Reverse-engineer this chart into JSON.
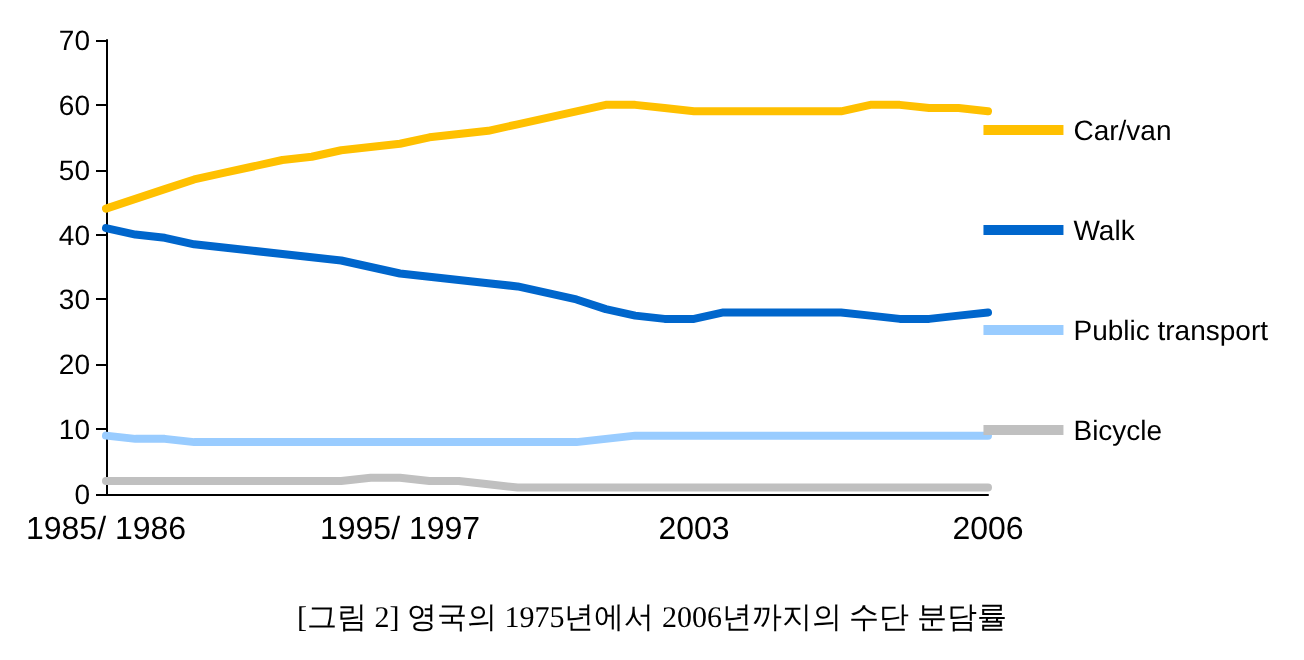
{
  "chart_data": {
    "type": "line",
    "categories": [
      "1985/ 1986",
      null,
      null,
      null,
      null,
      null,
      null,
      null,
      null,
      null,
      "1995/ 1997",
      null,
      null,
      null,
      null,
      null,
      null,
      null,
      null,
      null,
      "2003",
      null,
      null,
      null,
      null,
      null,
      null,
      null,
      null,
      null,
      "2006"
    ],
    "series": [
      {
        "name": "Car/van",
        "color": "#ffc000",
        "values": [
          44,
          45.5,
          47,
          48.5,
          49.5,
          50.5,
          51.5,
          52,
          53,
          53.5,
          54,
          55,
          55.5,
          56,
          57,
          58,
          59,
          60,
          60,
          59.5,
          59,
          59,
          59,
          59,
          59,
          59,
          60,
          60,
          59.5,
          59.5,
          59
        ]
      },
      {
        "name": "Walk",
        "color": "#0066cc",
        "values": [
          41,
          40,
          39.5,
          38.5,
          38,
          37.5,
          37,
          36.5,
          36,
          35,
          34,
          33.5,
          33,
          32.5,
          32,
          31,
          30,
          28.5,
          27.5,
          27,
          27,
          28,
          28,
          28,
          28,
          28,
          27.5,
          27,
          27,
          27.5,
          28
        ]
      },
      {
        "name": "Public transport",
        "color": "#99ccff",
        "values": [
          9,
          8.5,
          8.5,
          8,
          8,
          8,
          8,
          8,
          8,
          8,
          8,
          8,
          8,
          8,
          8,
          8,
          8,
          8.5,
          9,
          9,
          9,
          9,
          9,
          9,
          9,
          9,
          9,
          9,
          9,
          9,
          9
        ]
      },
      {
        "name": "Bicycle",
        "color": "#c0c0c0",
        "values": [
          2,
          2,
          2,
          2,
          2,
          2,
          2,
          2,
          2,
          2.5,
          2.5,
          2,
          2,
          1.5,
          1,
          1,
          1,
          1,
          1,
          1,
          1,
          1,
          1,
          1,
          1,
          1,
          1,
          1,
          1,
          1,
          1
        ]
      }
    ],
    "ylim": [
      0,
      70
    ],
    "yticks": [
      0,
      10,
      20,
      30,
      40,
      50,
      60,
      70
    ],
    "grid": false,
    "legend": "right",
    "marker": "none",
    "line_style": "solid",
    "annotations": [
      "[그림 2] 영국의 1975년에서 2006년까지의 수단 분담률"
    ]
  }
}
